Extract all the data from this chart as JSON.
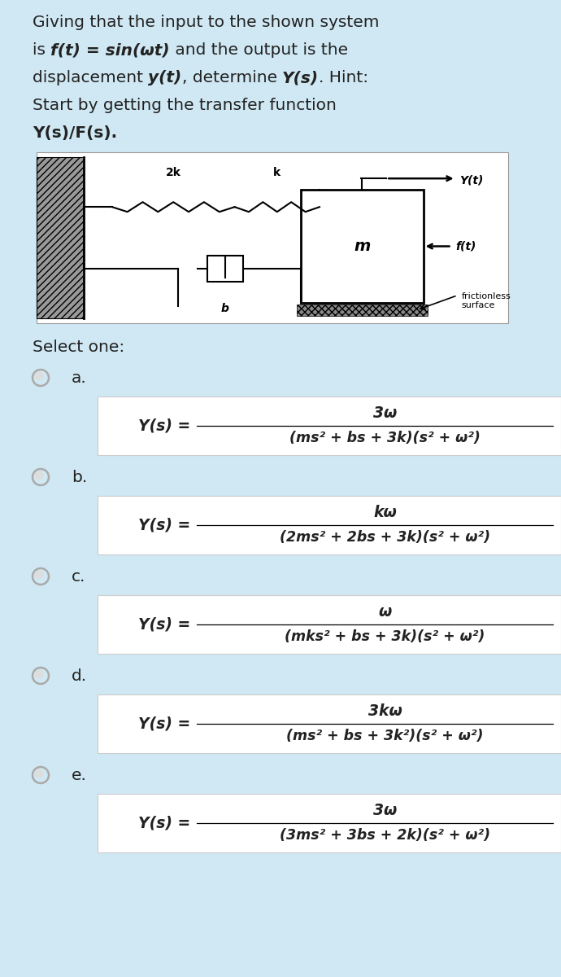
{
  "bg_color": "#cfe8f3",
  "text_color": "#222222",
  "formula_box_color": "#ffffff",
  "formula_box_edge": "#cccccc",
  "title_fontsize": 14.5,
  "formula_fontsize": 13.5,
  "option_fontsize": 14.5,
  "select_one_text": "Select one:",
  "options": [
    "a.",
    "b.",
    "c.",
    "d.",
    "e."
  ],
  "formulas": [
    {
      "num": "3ω",
      "den": "(ms² + bs + 3k)(s² + ω²)"
    },
    {
      "num": "kω",
      "den": "(2ms² + 2bs + 3k)(s² + ω²)"
    },
    {
      "num": "ω",
      "den": "(mks² + bs + 3k)(s² + ω²)"
    },
    {
      "num": "3kω",
      "den": "(ms² + bs + 3k²)(s² + ω²)"
    },
    {
      "num": "3ω",
      "den": "(3ms² + 3bs + 2k)(s² + ω²)"
    }
  ]
}
